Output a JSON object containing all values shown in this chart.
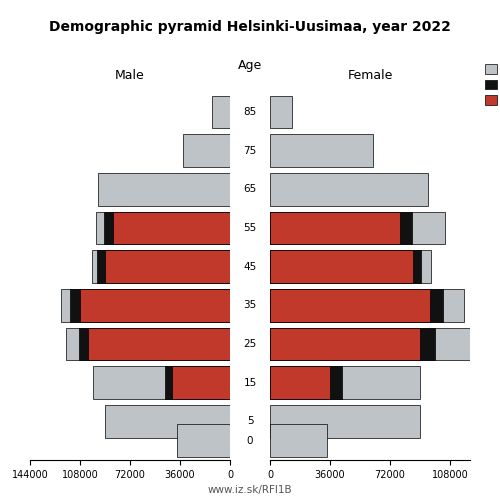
{
  "title": "Demographic pyramid Helsinki-Uusimaa, year 2022",
  "age_positions": [
    85,
    75,
    65,
    55,
    45,
    35,
    25,
    15,
    5,
    0
  ],
  "male": {
    "inactive": [
      13000,
      34000,
      95000,
      6000,
      4000,
      6000,
      9000,
      52000,
      90000,
      38000
    ],
    "unemployed": [
      0,
      0,
      0,
      6500,
      5500,
      7500,
      7000,
      5000,
      0,
      0
    ],
    "employed": [
      0,
      0,
      0,
      84000,
      90000,
      108000,
      102000,
      42000,
      0,
      0
    ]
  },
  "female": {
    "inactive": [
      13000,
      62000,
      95000,
      20000,
      6000,
      13000,
      26000,
      47000,
      90000,
      34000
    ],
    "unemployed": [
      0,
      0,
      0,
      7000,
      4500,
      7500,
      9000,
      7000,
      0,
      0
    ],
    "employed": [
      0,
      0,
      0,
      78000,
      86000,
      96000,
      90000,
      36000,
      0,
      0
    ]
  },
  "colors": {
    "inactive": "#bdc3c7",
    "unemployed": "#111111",
    "employed": "#c0392b"
  },
  "xlim_left": 144000,
  "xlim_right": 120000,
  "xticks_left": [
    144000,
    108000,
    72000,
    36000,
    0
  ],
  "xticks_right": [
    0,
    36000,
    72000,
    108000
  ],
  "bar_height": 8.5,
  "background_color": "#ffffff",
  "footer": "www.iz.sk/RFI1B"
}
